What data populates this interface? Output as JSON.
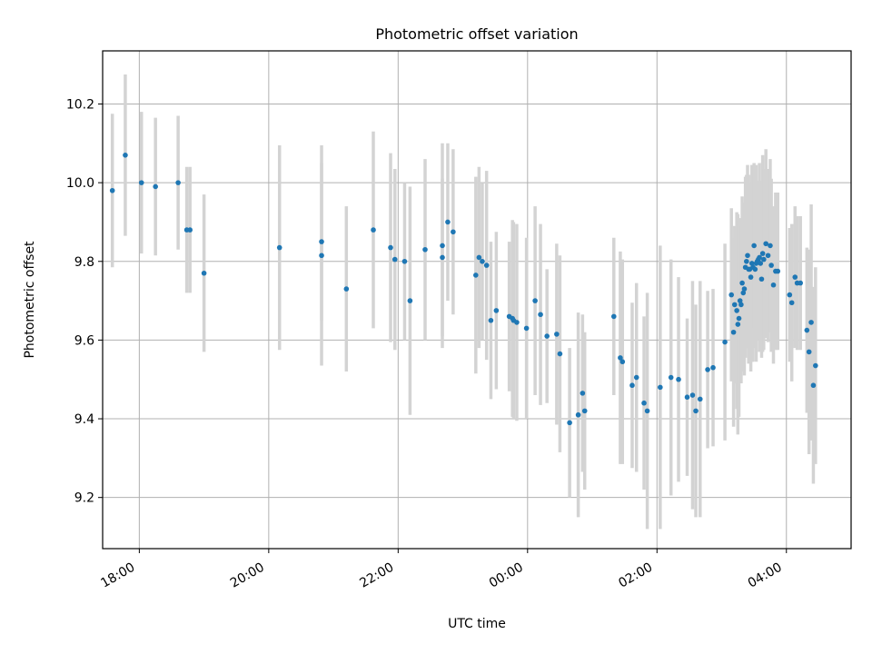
{
  "chart_data": {
    "type": "scatter",
    "title": "Photometric offset variation",
    "xlabel": "UTC time",
    "ylabel": "Photometric offset",
    "x_ticks": [
      "18:00",
      "20:00",
      "22:00",
      "00:00",
      "02:00",
      "04:00"
    ],
    "y_ticks": [
      "9.2",
      "9.4",
      "9.6",
      "9.8",
      "10.0",
      "10.2"
    ],
    "grid": true,
    "point_color": "#1f77b4",
    "errorbar_color": "#d3d3d3",
    "series": [
      {
        "x": [
          "17:35",
          "17:47",
          "18:02",
          "18:15",
          "18:36",
          "18:44",
          "18:47",
          "19:00",
          "20:10",
          "20:49",
          "20:49",
          "21:12",
          "21:37",
          "21:53",
          "21:57",
          "22:06",
          "22:11",
          "22:25",
          "22:41",
          "22:41",
          "22:46",
          "22:51",
          "23:12",
          "23:15",
          "23:18",
          "23:22",
          "23:26",
          "23:31",
          "23:43",
          "23:46",
          "23:47",
          "23:50",
          "23:59",
          "24:07",
          "24:12",
          "24:18",
          "24:27",
          "24:30",
          "24:39",
          "24:47",
          "24:51",
          "24:53",
          "25:20",
          "25:26",
          "25:28",
          "25:37",
          "25:41",
          "25:48",
          "25:51",
          "26:03",
          "26:13",
          "26:20",
          "26:28",
          "26:33",
          "26:36",
          "26:40",
          "26:47",
          "26:52",
          "27:03",
          "27:09",
          "27:11",
          "27:12",
          "27:14",
          "27:15",
          "27:16",
          "27:17",
          "27:18",
          "27:19",
          "27:20",
          "27:21",
          "27:22",
          "27:23",
          "27:24",
          "27:25",
          "27:26",
          "27:27",
          "27:28",
          "27:29",
          "27:30",
          "27:31",
          "27:32",
          "27:33",
          "27:34",
          "27:35",
          "27:36",
          "27:37",
          "27:38",
          "27:39",
          "27:41",
          "27:43",
          "27:45",
          "27:46",
          "27:48",
          "27:50",
          "27:52",
          "28:03",
          "28:05",
          "28:08",
          "28:10",
          "28:13",
          "28:19",
          "28:21",
          "28:23",
          "28:25",
          "28:27"
        ],
        "y": [
          9.98,
          10.07,
          10.0,
          9.99,
          10.0,
          9.88,
          9.88,
          9.77,
          9.835,
          9.815,
          9.85,
          9.73,
          9.88,
          9.835,
          9.805,
          9.8,
          9.7,
          9.83,
          9.84,
          9.81,
          9.9,
          9.875,
          9.765,
          9.81,
          9.8,
          9.79,
          9.65,
          9.675,
          9.66,
          9.655,
          9.65,
          9.645,
          9.63,
          9.7,
          9.665,
          9.61,
          9.615,
          9.565,
          9.39,
          9.41,
          9.465,
          9.42,
          9.66,
          9.555,
          9.545,
          9.485,
          9.505,
          9.44,
          9.42,
          9.48,
          9.505,
          9.5,
          9.455,
          9.46,
          9.42,
          9.45,
          9.525,
          9.53,
          9.595,
          9.715,
          9.62,
          9.69,
          9.675,
          9.64,
          9.655,
          9.7,
          9.69,
          9.745,
          9.72,
          9.73,
          9.785,
          9.8,
          9.815,
          9.78,
          9.78,
          9.76,
          9.795,
          9.785,
          9.84,
          9.78,
          9.795,
          9.8,
          9.805,
          9.81,
          9.795,
          9.755,
          9.82,
          9.805,
          9.845,
          9.815,
          9.84,
          9.79,
          9.74,
          9.775,
          9.775,
          9.715,
          9.695,
          9.76,
          9.745,
          9.745,
          9.625,
          9.57,
          9.645,
          9.485,
          9.535
        ],
        "yerr": [
          0.195,
          0.205,
          0.18,
          0.175,
          0.17,
          0.16,
          0.16,
          0.2,
          0.26,
          0.28,
          0.2,
          0.21,
          0.25,
          0.24,
          0.23,
          0.2,
          0.29,
          0.23,
          0.26,
          0.2,
          0.2,
          0.21,
          0.25,
          0.23,
          0.2,
          0.24,
          0.2,
          0.2,
          0.19,
          0.25,
          0.25,
          0.25,
          0.23,
          0.24,
          0.23,
          0.17,
          0.23,
          0.25,
          0.19,
          0.26,
          0.2,
          0.2,
          0.2,
          0.27,
          0.26,
          0.21,
          0.24,
          0.22,
          0.3,
          0.36,
          0.3,
          0.26,
          0.2,
          0.29,
          0.27,
          0.3,
          0.2,
          0.2,
          0.25,
          0.22,
          0.24,
          0.2,
          0.25,
          0.28,
          0.25,
          0.21,
          0.2,
          0.22,
          0.2,
          0.22,
          0.23,
          0.22,
          0.23,
          0.24,
          0.2,
          0.24,
          0.25,
          0.24,
          0.21,
          0.2,
          0.25,
          0.2,
          0.2,
          0.24,
          0.21,
          0.2,
          0.25,
          0.23,
          0.24,
          0.22,
          0.22,
          0.22,
          0.2,
          0.2,
          0.2,
          0.17,
          0.2,
          0.18,
          0.17,
          0.17,
          0.21,
          0.26,
          0.3,
          0.25,
          0.25
        ]
      }
    ]
  }
}
